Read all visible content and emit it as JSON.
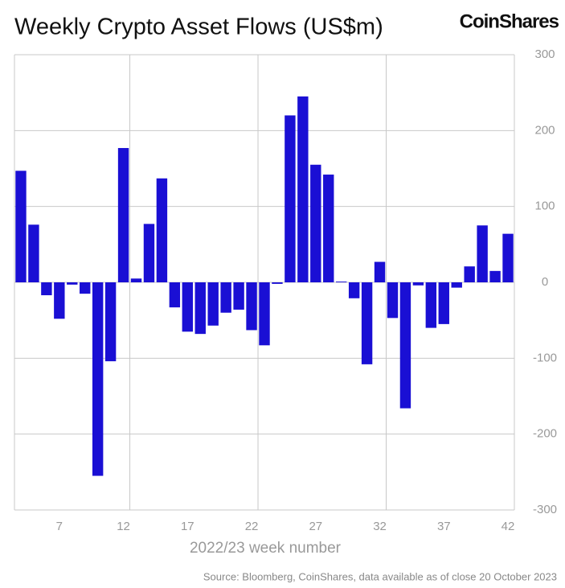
{
  "chart_data": {
    "type": "bar",
    "title": "Weekly Crypto Asset Flows (US$m)",
    "logo": "CoinShares",
    "x_label": "2022/23 week number",
    "source": "Source: Bloomberg, CoinShares, data available as of close 20 October 2023",
    "categories": [
      null,
      null,
      null,
      "7",
      null,
      null,
      null,
      null,
      "12",
      null,
      null,
      null,
      null,
      "17",
      null,
      null,
      null,
      null,
      "22",
      null,
      null,
      null,
      null,
      "27",
      null,
      null,
      null,
      null,
      "32",
      null,
      null,
      null,
      null,
      "37",
      null,
      null,
      null,
      null,
      "42"
    ],
    "values": [
      147,
      76,
      -17,
      -48,
      -3,
      -15,
      -255,
      -104,
      177,
      5,
      77,
      137,
      -33,
      -65,
      -68,
      -57,
      -40,
      -36,
      -63,
      -83,
      -2,
      220,
      245,
      155,
      142,
      1,
      -21,
      -108,
      27,
      -47,
      -166,
      -4,
      -60,
      -55,
      -7,
      21,
      75,
      15,
      64
    ],
    "color": "#1a0fd4",
    "ylim": [
      -300,
      300
    ],
    "yticks": [
      -300,
      -200,
      -100,
      0,
      100,
      200,
      300
    ],
    "grid": true
  }
}
